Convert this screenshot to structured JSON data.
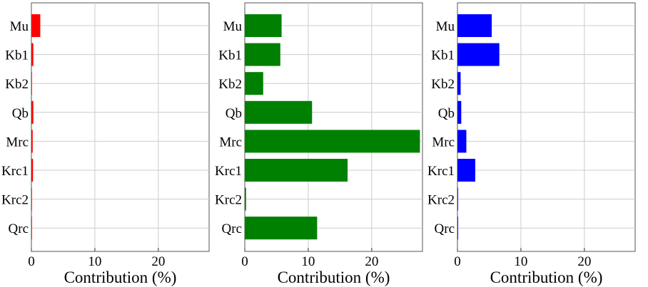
{
  "chart_data": [
    {
      "type": "bar",
      "orientation": "horizontal",
      "categories": [
        "Mu",
        "Kb1",
        "Kb2",
        "Qb",
        "Mrc",
        "Krc1",
        "Krc2",
        "Qrc"
      ],
      "values": [
        1.4,
        0.3,
        0.05,
        0.3,
        0.2,
        0.25,
        0.05,
        0.05
      ],
      "color": "#ff0000",
      "xlabel": "Contribution (%)",
      "ylabel": "",
      "title": "",
      "xlim": [
        0,
        28
      ],
      "xticks": [
        "0",
        "10",
        "20"
      ],
      "grid": true
    },
    {
      "type": "bar",
      "orientation": "horizontal",
      "categories": [
        "Mu",
        "Kb1",
        "Kb2",
        "Qb",
        "Mrc",
        "Krc1",
        "Krc2",
        "Qrc"
      ],
      "values": [
        5.8,
        5.6,
        2.9,
        10.6,
        27.6,
        16.2,
        0.2,
        11.4
      ],
      "color": "#008000",
      "xlabel": "Contribution (%)",
      "ylabel": "",
      "title": "",
      "xlim": [
        0,
        28
      ],
      "xticks": [
        "0",
        "10",
        "20"
      ],
      "grid": true
    },
    {
      "type": "bar",
      "orientation": "horizontal",
      "categories": [
        "Mu",
        "Kb1",
        "Kb2",
        "Qb",
        "Mrc",
        "Krc1",
        "Krc2",
        "Qrc"
      ],
      "values": [
        5.4,
        6.6,
        0.5,
        0.6,
        1.4,
        2.8,
        0.1,
        0.1
      ],
      "color": "#0000ff",
      "xlabel": "Contribution (%)",
      "ylabel": "",
      "title": "",
      "xlim": [
        0,
        28
      ],
      "xticks": [
        "0",
        "10",
        "20"
      ],
      "grid": true
    }
  ]
}
